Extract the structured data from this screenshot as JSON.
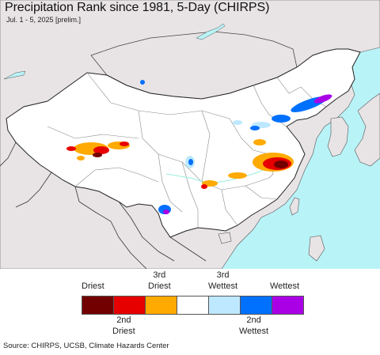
{
  "header": {
    "title": "Precipitation Rank since 1981, 5-Day (CHIRPS)",
    "subtitle": "Jul. 1 - 5, 2025 [prelim.]"
  },
  "legend": {
    "top_labels": [
      "Driest",
      "3rd\nDriest",
      "3rd\nWettest",
      "Wettest"
    ],
    "bottom_labels": [
      "2nd\nDriest",
      "2nd\nWettest"
    ],
    "colors": [
      "#730000",
      "#e60000",
      "#ffaa00",
      "#ffffff",
      "#bee8ff",
      "#0070ff",
      "#a900e6"
    ]
  },
  "colors": {
    "ocean": "#b8f3f7",
    "land_outside": "#e8e4e6",
    "land_china": "#ffffff",
    "borders": "#333333"
  },
  "footer": {
    "source": "Source: CHIRPS, UCSB, Climate Hazards Center"
  }
}
